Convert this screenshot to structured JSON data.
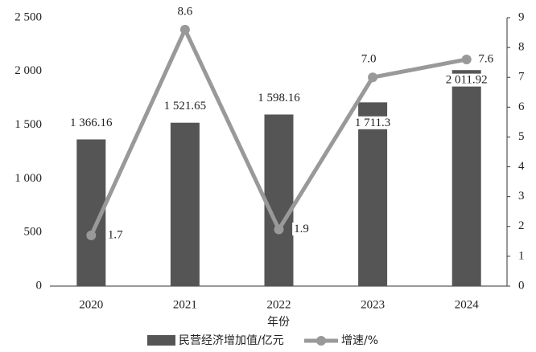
{
  "chart_data": {
    "type": "bar-line",
    "categories": [
      "2020",
      "2021",
      "2022",
      "2023",
      "2024"
    ],
    "x_label": "年份",
    "series": [
      {
        "name": "民营经济增加值/亿元",
        "color": "#555555",
        "type": "bar",
        "values": [
          1366.16,
          1521.65,
          1598.16,
          1711.3,
          2011.92
        ],
        "value_labels": [
          "1 366.16",
          "1 521.65",
          "1 598.16",
          "1 711.3",
          "2 011.92"
        ]
      },
      {
        "name": "增速/%",
        "color": "#999999",
        "type": "line",
        "axis": "y2",
        "values": [
          1.7,
          8.6,
          1.9,
          7.0,
          7.6
        ],
        "value_labels": [
          "1.7",
          "8.6",
          "1.9",
          "7.0",
          "7.6"
        ]
      }
    ],
    "ylim": [
      0,
      2500
    ],
    "yticks": [
      0,
      500,
      {
        "value": 1000,
        "label": "1 000"
      },
      {
        "value": 1500,
        "label": "1 500"
      },
      {
        "value": 2000,
        "label": "2 000"
      },
      {
        "value": 2500,
        "label": "2 500"
      }
    ],
    "y2lim": [
      0,
      9
    ],
    "y2ticks": [
      0,
      1,
      2,
      3,
      4,
      5,
      6,
      7,
      8,
      9
    ],
    "grid": false
  }
}
